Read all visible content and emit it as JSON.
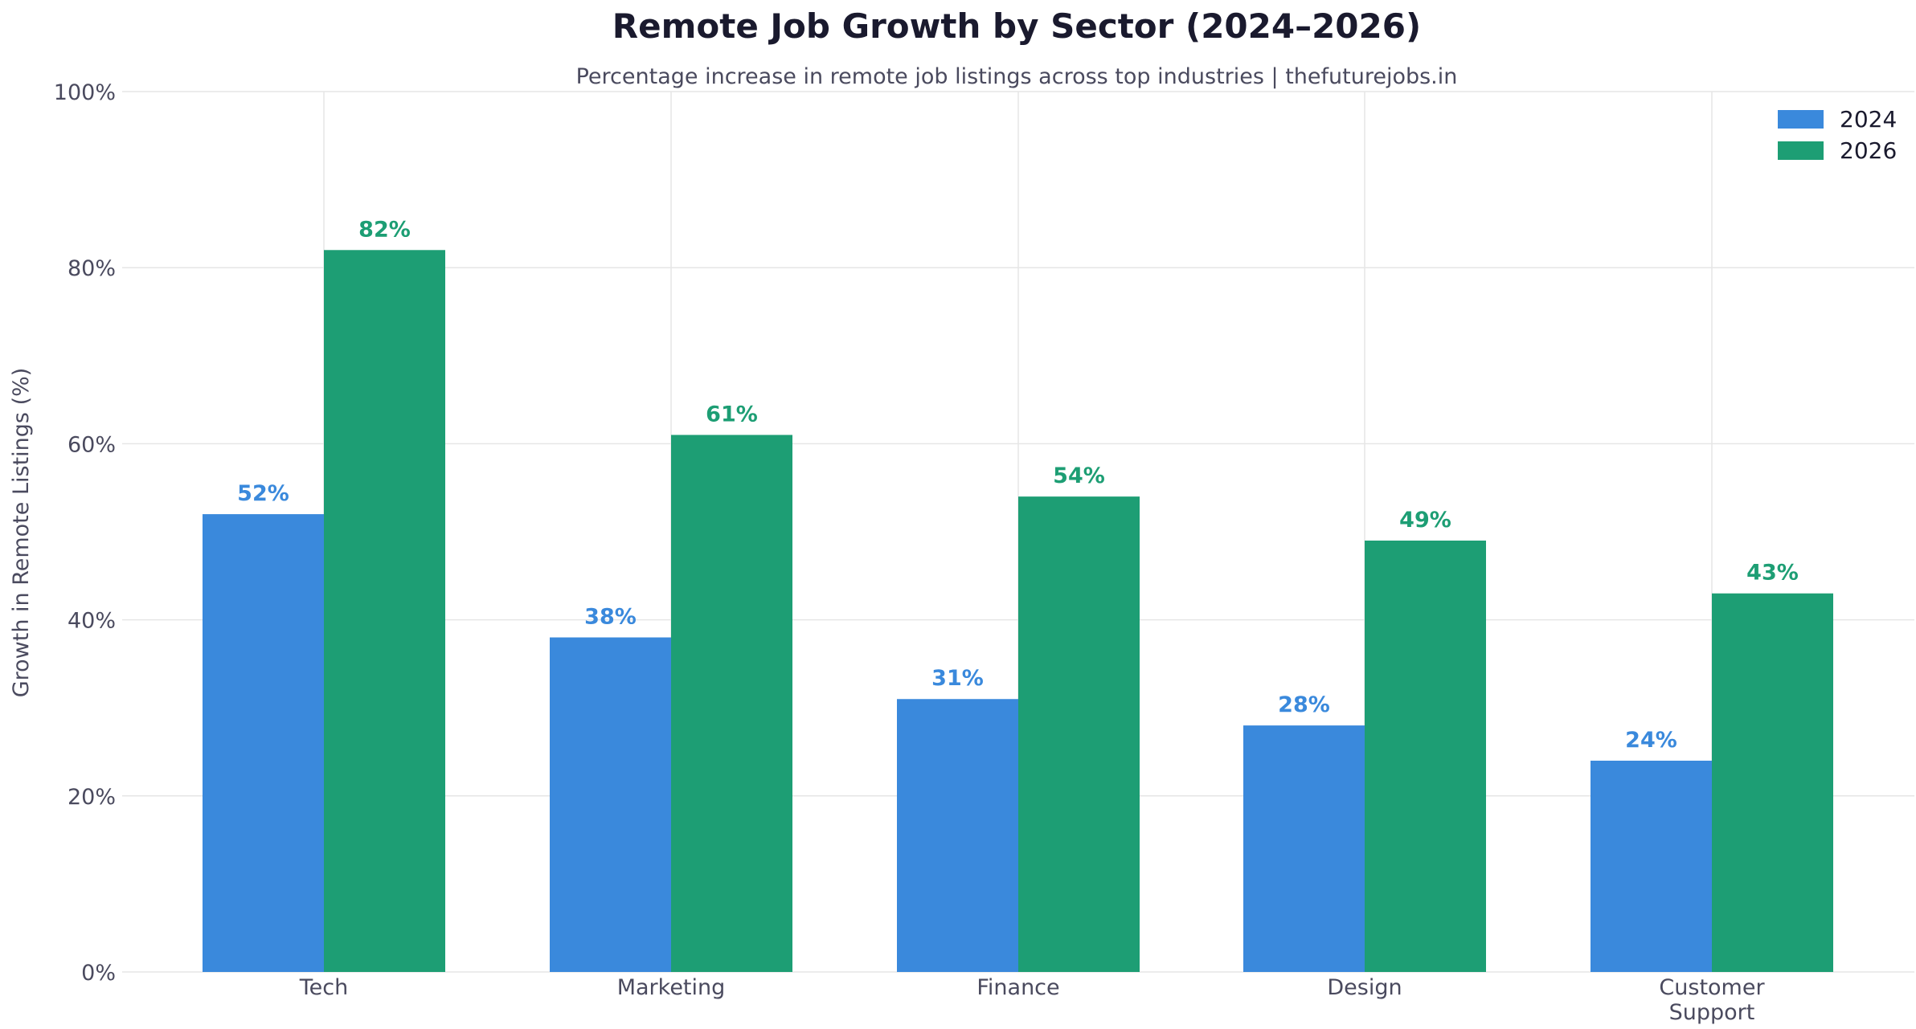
{
  "chart_data": {
    "type": "bar",
    "title": "Remote Job Growth by Sector (2024–2026)",
    "subtitle": "Percentage increase in remote job listings across top industries | thefuturejobs.in",
    "xlabel": "",
    "ylabel": "Growth in Remote Listings (%)",
    "categories": [
      "Tech",
      "Marketing",
      "Finance",
      "Design",
      "Customer Support"
    ],
    "category_lines": [
      [
        "Tech"
      ],
      [
        "Marketing"
      ],
      [
        "Finance"
      ],
      [
        "Design"
      ],
      [
        "Customer",
        "Support"
      ]
    ],
    "series": [
      {
        "name": "2024",
        "color": "#3a89dc",
        "values": [
          52,
          38,
          31,
          28,
          24
        ]
      },
      {
        "name": "2026",
        "color": "#1d9e74",
        "values": [
          82,
          61,
          54,
          49,
          43
        ]
      }
    ],
    "data_labels": [
      [
        "52%",
        "38%",
        "31%",
        "28%",
        "24%"
      ],
      [
        "82%",
        "61%",
        "54%",
        "49%",
        "43%"
      ]
    ],
    "ylim": [
      0,
      100
    ],
    "yticks": [
      0,
      20,
      40,
      60,
      80,
      100
    ],
    "ytick_labels": [
      "0%",
      "20%",
      "40%",
      "60%",
      "80%",
      "100%"
    ],
    "grid": true,
    "legend_position": "top-right"
  }
}
